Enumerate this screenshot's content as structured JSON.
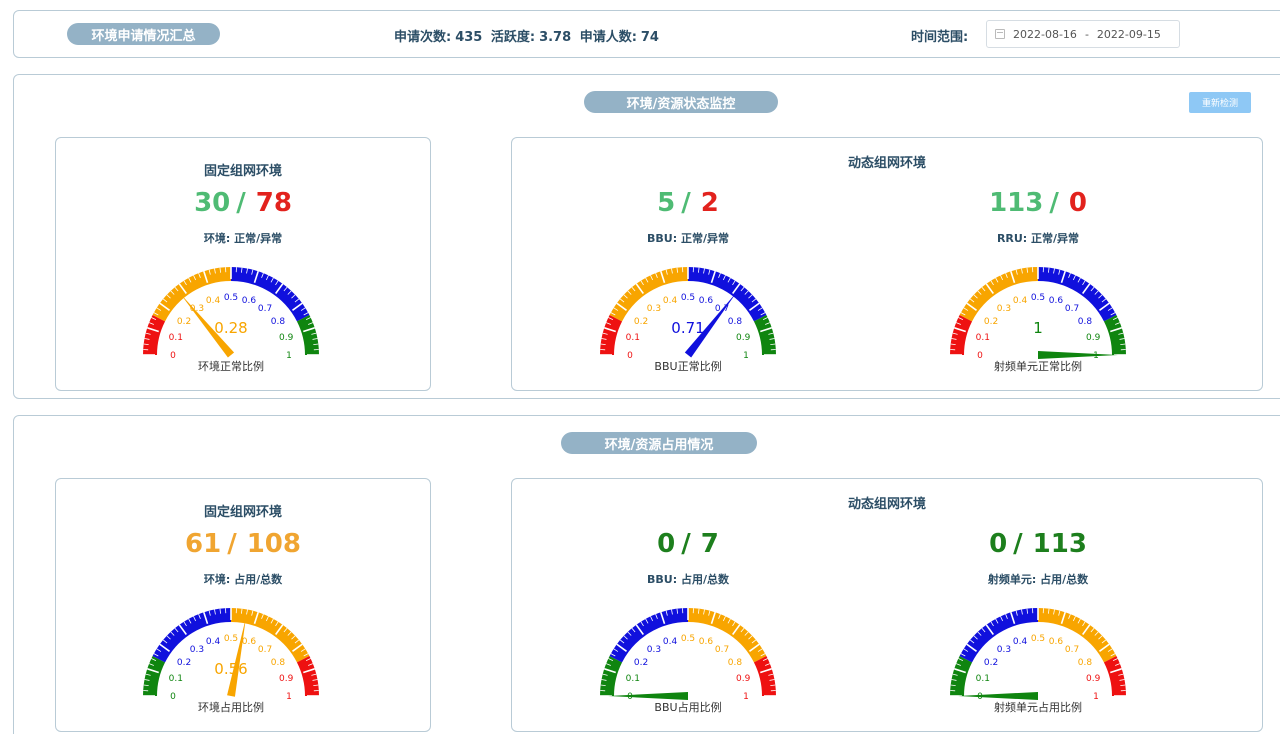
{
  "header": {
    "summary_label": "环境申请情况汇总",
    "stats": [
      {
        "label": "申请次数:",
        "value": "435"
      },
      {
        "label": "活跃度:",
        "value": "3.78"
      },
      {
        "label": "申请人数:",
        "value": "74"
      }
    ],
    "time_range_label": "时间范围:",
    "date_start": "2022-08-16",
    "date_sep": "-",
    "date_end": "2022-09-15"
  },
  "monitor": {
    "title": "环境/资源状态监控",
    "recheck_label": "重新检测",
    "fixed": {
      "title": "固定组网环境",
      "a": "30",
      "sep": "/",
      "b": "78",
      "sub": "环境: 正常/异常",
      "gauge": {
        "value": 0.28,
        "label": "0.28",
        "caption": "环境正常比例",
        "scheme": "status"
      }
    },
    "dynamic": {
      "title": "动态组网环境",
      "bbu": {
        "a": "5",
        "sep": "/",
        "b": "2",
        "sub": "BBU: 正常/异常",
        "gauge": {
          "value": 0.71,
          "label": "0.71",
          "caption": "BBU正常比例",
          "scheme": "status"
        }
      },
      "rru": {
        "a": "113",
        "sep": "/",
        "b": "0",
        "sub": "RRU: 正常/异常",
        "gauge": {
          "value": 1,
          "label": "1",
          "caption": "射频单元正常比例",
          "scheme": "status"
        }
      }
    }
  },
  "usage": {
    "title": "环境/资源占用情况",
    "fixed": {
      "title": "固定组网环境",
      "a": "61",
      "sep": "/",
      "b": "108",
      "sub": "环境: 占用/总数",
      "gauge": {
        "value": 0.56,
        "label": "0.56",
        "caption": "环境占用比例",
        "scheme": "usage"
      }
    },
    "dynamic": {
      "title": "动态组网环境",
      "bbu": {
        "a": "0",
        "sep": "/",
        "b": "7",
        "sub": "BBU: 占用/总数",
        "gauge": {
          "value": 0,
          "label": "",
          "caption": "BBU占用比例",
          "scheme": "usage"
        }
      },
      "rru": {
        "a": "0",
        "sep": "/",
        "b": "113",
        "sub": "射频单元: 占用/总数",
        "gauge": {
          "value": 0,
          "label": "",
          "caption": "射频单元占用比例",
          "scheme": "usage"
        }
      }
    }
  },
  "tick_labels": [
    "0",
    "0.1",
    "0.2",
    "0.3",
    "0.4",
    "0.5",
    "0.6",
    "0.7",
    "0.8",
    "0.9",
    "1"
  ],
  "colors": {
    "red": "#ee1111",
    "orange": "#f8a500",
    "blue": "#1010dd",
    "green": "#0f850f",
    "normal": "#4fbb74",
    "abnormal": "#e2221d",
    "used": "#f0a531",
    "dyn_used": "#1d7f1d"
  }
}
